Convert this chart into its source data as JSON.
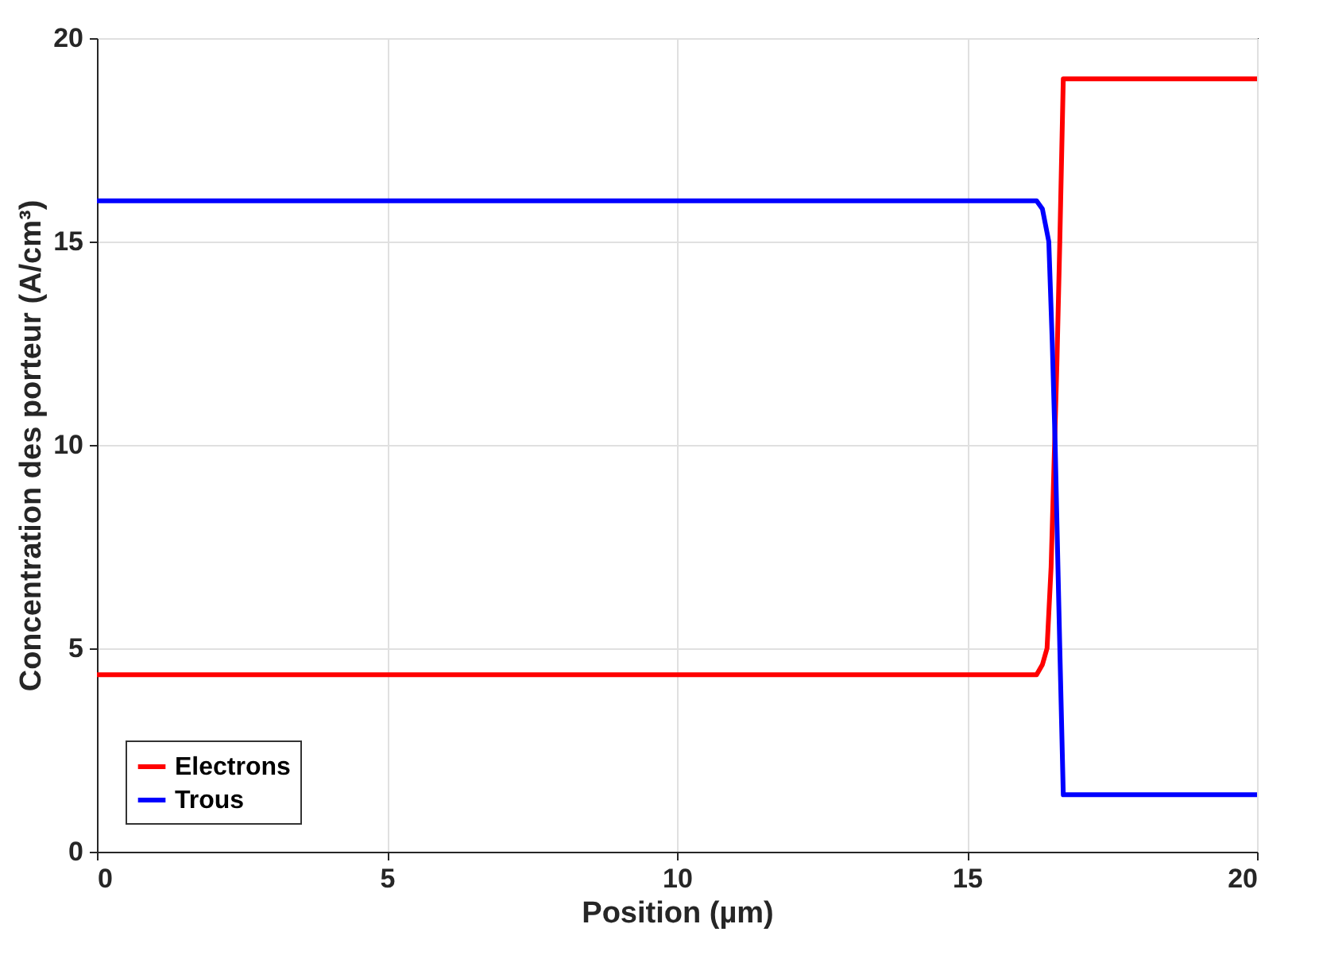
{
  "chart_data": {
    "type": "line",
    "xlabel": "Position (µm)",
    "ylabel": "Concentration des porteur (A/cm³)",
    "xlim": [
      0,
      20
    ],
    "xticks": [
      0,
      5,
      10,
      15,
      20
    ],
    "ylim": [
      0,
      20
    ],
    "yticks": [
      0,
      5,
      10,
      15,
      20
    ],
    "grid": true,
    "legend": "bottom left",
    "line_style": "solid",
    "series": [
      {
        "name": "Electrons",
        "color": "#ff0000",
        "x": [
          0,
          16.2,
          16.3,
          16.38,
          16.45,
          16.55,
          16.6,
          16.66,
          20
        ],
        "values": [
          4.35,
          4.35,
          4.6,
          5,
          7,
          12,
          15,
          19,
          19
        ]
      },
      {
        "name": "Trous",
        "color": "#0000ff",
        "x": [
          0,
          16.2,
          16.3,
          16.41,
          16.47,
          16.52,
          16.6,
          16.66,
          20
        ],
        "values": [
          16,
          16,
          15.8,
          15,
          12.5,
          10,
          5,
          1.4,
          1.4
        ]
      }
    ]
  }
}
